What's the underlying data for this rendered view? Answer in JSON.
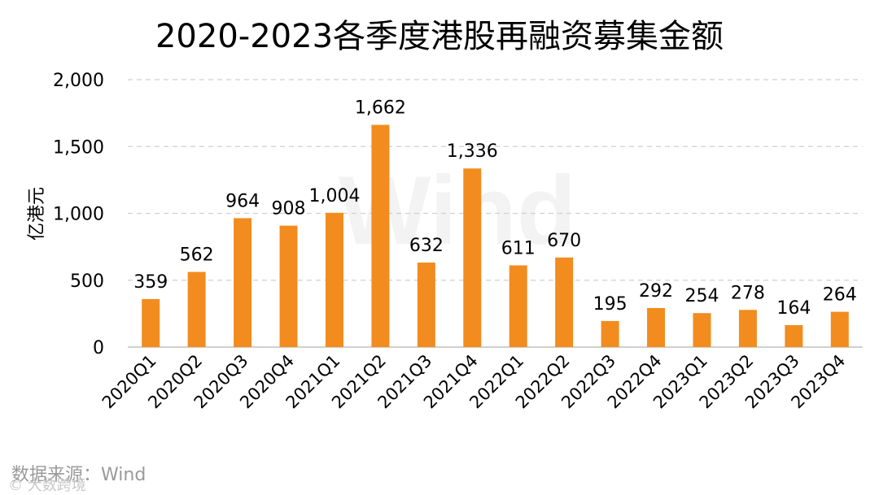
{
  "title": "2020-2023各季度港股再融资募集金额",
  "source": "数据来源：Wind",
  "watermark_text": "Wind",
  "corner_mark": "© 大数跨境",
  "colors": {
    "bar": "#F28C1F",
    "grid": "#d0d0d0",
    "axis": "#bfbfbf",
    "text": "#000000"
  },
  "chart_data": {
    "type": "bar",
    "title": "2020-2023各季度港股再融资募集金额",
    "ylabel": "亿港元",
    "xlabel": "",
    "ylim": [
      0,
      2000
    ],
    "yticks": [
      0,
      500,
      1000,
      1500,
      2000
    ],
    "ytick_labels": [
      "0",
      "500",
      "1,000",
      "1,500",
      "2,000"
    ],
    "grid": true,
    "categories": [
      "2020Q1",
      "2020Q2",
      "2020Q3",
      "2020Q4",
      "2021Q1",
      "2021Q2",
      "2021Q3",
      "2021Q4",
      "2022Q1",
      "2022Q2",
      "2022Q3",
      "2022Q4",
      "2023Q1",
      "2023Q2",
      "2023Q3",
      "2023Q4"
    ],
    "values": [
      359,
      562,
      964,
      908,
      1004,
      1662,
      632,
      1336,
      611,
      670,
      195,
      292,
      254,
      278,
      164,
      264
    ],
    "data_labels": [
      "359",
      "562",
      "964",
      "908",
      "1,004",
      "1,662",
      "632",
      "1,336",
      "611",
      "670",
      "195",
      "292",
      "254",
      "278",
      "164",
      "264"
    ]
  }
}
